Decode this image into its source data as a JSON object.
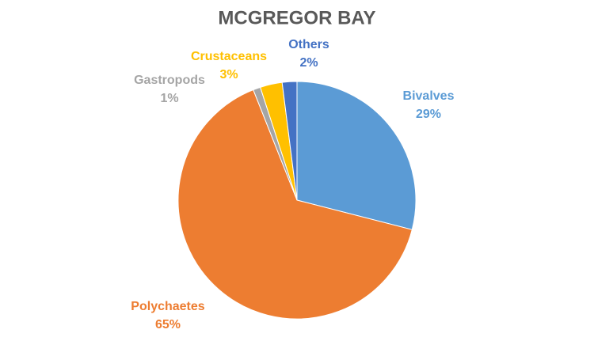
{
  "chart_data": {
    "type": "pie",
    "title": "MCGREGOR BAY",
    "categories": [
      "Bivalves",
      "Polychaetes",
      "Gastropods",
      "Crustaceans",
      "Others"
    ],
    "values": [
      29,
      65,
      1,
      3,
      2
    ],
    "value_labels": [
      "29%",
      "65%",
      "1%",
      "3%",
      "2%"
    ],
    "colors": [
      "#5b9bd5",
      "#ed7d31",
      "#a5a5a5",
      "#ffc000",
      "#4472c4"
    ]
  }
}
